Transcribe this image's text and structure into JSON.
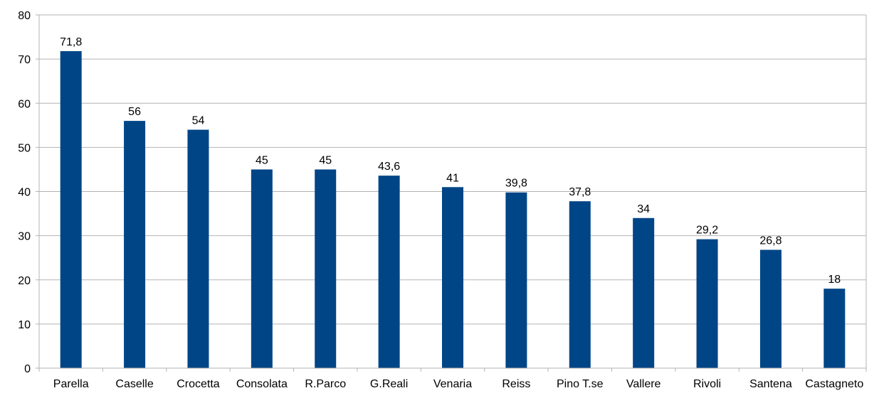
{
  "chart_data": {
    "type": "bar",
    "categories": [
      "Parella",
      "Caselle",
      "Crocetta",
      "Consolata",
      "R.Parco",
      "G.Reali",
      "Venaria",
      "Reiss",
      "Pino T.se",
      "Vallere",
      "Rivoli",
      "Santena",
      "Castagneto"
    ],
    "values": [
      71.8,
      56,
      54,
      45,
      45,
      43.6,
      41,
      39.8,
      37.8,
      34,
      29.2,
      26.8,
      18
    ],
    "data_labels": [
      "71,8",
      "56",
      "54",
      "45",
      "45",
      "43,6",
      "41",
      "39,8",
      "37,8",
      "34",
      "29,2",
      "26,8",
      "18"
    ],
    "yticks": [
      "0",
      "10",
      "20",
      "30",
      "40",
      "50",
      "60",
      "70",
      "80"
    ],
    "ylim": [
      0,
      80
    ],
    "grid": true,
    "bar_color": "#004586",
    "grid_color": "#b3b3b3",
    "title": "",
    "xlabel": "",
    "ylabel": ""
  }
}
